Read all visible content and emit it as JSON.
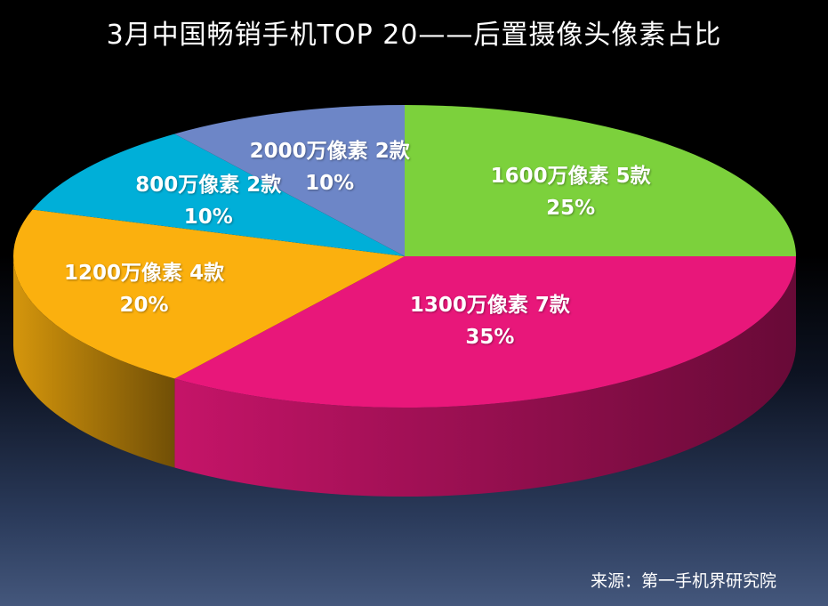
{
  "chart_data": {
    "type": "pie",
    "title": "3月中国畅销手机TOP 20——后置摄像头像素占比",
    "slices": [
      {
        "label": "1600万像素",
        "count": "5款",
        "percent": "25%",
        "value": 25,
        "color": "#7cd13c"
      },
      {
        "label": "1300万像素",
        "count": "7款",
        "percent": "35%",
        "value": 35,
        "color": "#e8177a"
      },
      {
        "label": "1200万像素",
        "count": "4款",
        "percent": "20%",
        "value": 20,
        "color": "#fbb00e"
      },
      {
        "label": "800万像素",
        "count": "2款",
        "percent": "10%",
        "value": 10,
        "color": "#00afd8"
      },
      {
        "label": "2000万像素",
        "count": "2款",
        "percent": "10%",
        "value": 10,
        "color": "#6d86c7"
      }
    ]
  },
  "footer": {
    "source": "来源：第一手机界研究院"
  }
}
